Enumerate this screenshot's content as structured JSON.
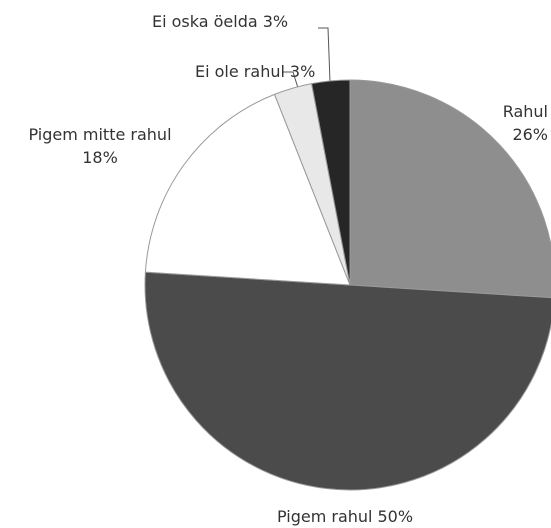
{
  "chart_data": {
    "type": "pie",
    "categories": [
      "Rahul",
      "Pigem rahul",
      "Pigem mitte rahul",
      "Ei ole rahul",
      "Ei oska öelda"
    ],
    "values": [
      26,
      50,
      18,
      3,
      3
    ],
    "value_labels": [
      "26%",
      "50%",
      "18%",
      "3%",
      "3%"
    ],
    "colors": [
      "#8e8e8e",
      "#4b4b4b",
      "#ffffff",
      "#e8e8e8",
      "#262626"
    ]
  }
}
